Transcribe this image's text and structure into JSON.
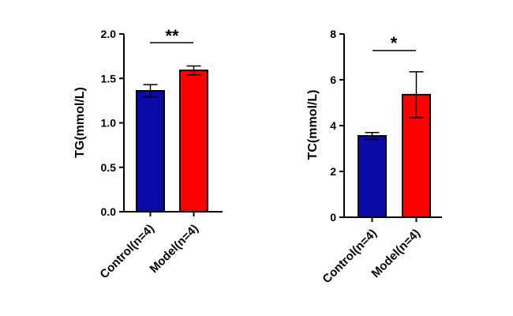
{
  "chart_data": [
    {
      "type": "bar",
      "ylabel": "TG(mmol/L)",
      "ylim": [
        0,
        2.0
      ],
      "yticks": [
        "0.0",
        "0.5",
        "1.0",
        "1.5",
        "2.0"
      ],
      "categories": [
        "Control(n=4)",
        "Model(n=4)"
      ],
      "values": [
        1.36,
        1.59
      ],
      "errors": [
        0.07,
        0.05
      ],
      "colors": [
        "#0a0aa6",
        "#ff0000"
      ],
      "significance": "**"
    },
    {
      "type": "bar",
      "ylabel": "TC(mmol/L)",
      "ylim": [
        0,
        8
      ],
      "yticks": [
        "0",
        "2",
        "4",
        "6",
        "8"
      ],
      "categories": [
        "Control(n=4)",
        "Model(n=4)"
      ],
      "values": [
        3.55,
        5.35
      ],
      "errors": [
        0.15,
        1.0
      ],
      "colors": [
        "#0a0aa6",
        "#ff0000"
      ],
      "significance": "*"
    }
  ]
}
